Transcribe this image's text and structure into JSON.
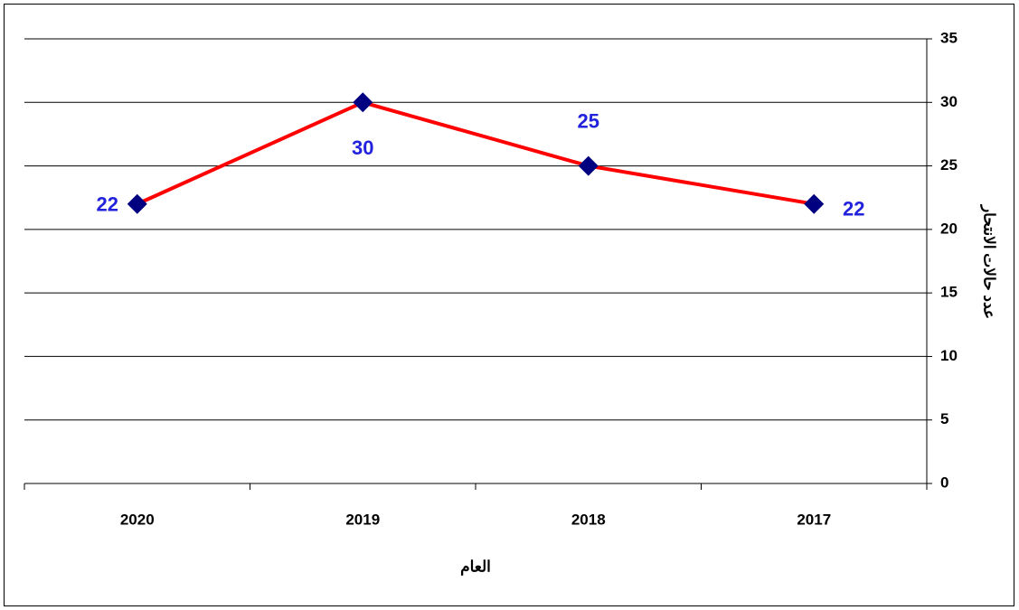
{
  "chart_data": {
    "type": "line",
    "categories": [
      "2020",
      "2019",
      "2018",
      "2017"
    ],
    "series": [
      {
        "name": "عدد حالات الانتحار",
        "color": "#ff0000",
        "marker_color": "#000080",
        "values": [
          22,
          30,
          25,
          22
        ]
      }
    ],
    "xlabel": "العام",
    "ylabel": "عدد حالات الانتحار",
    "ylim": [
      0,
      35
    ],
    "yticks": [
      0,
      5,
      10,
      15,
      20,
      25,
      30,
      35
    ],
    "grid": true,
    "y_axis_side": "right"
  }
}
